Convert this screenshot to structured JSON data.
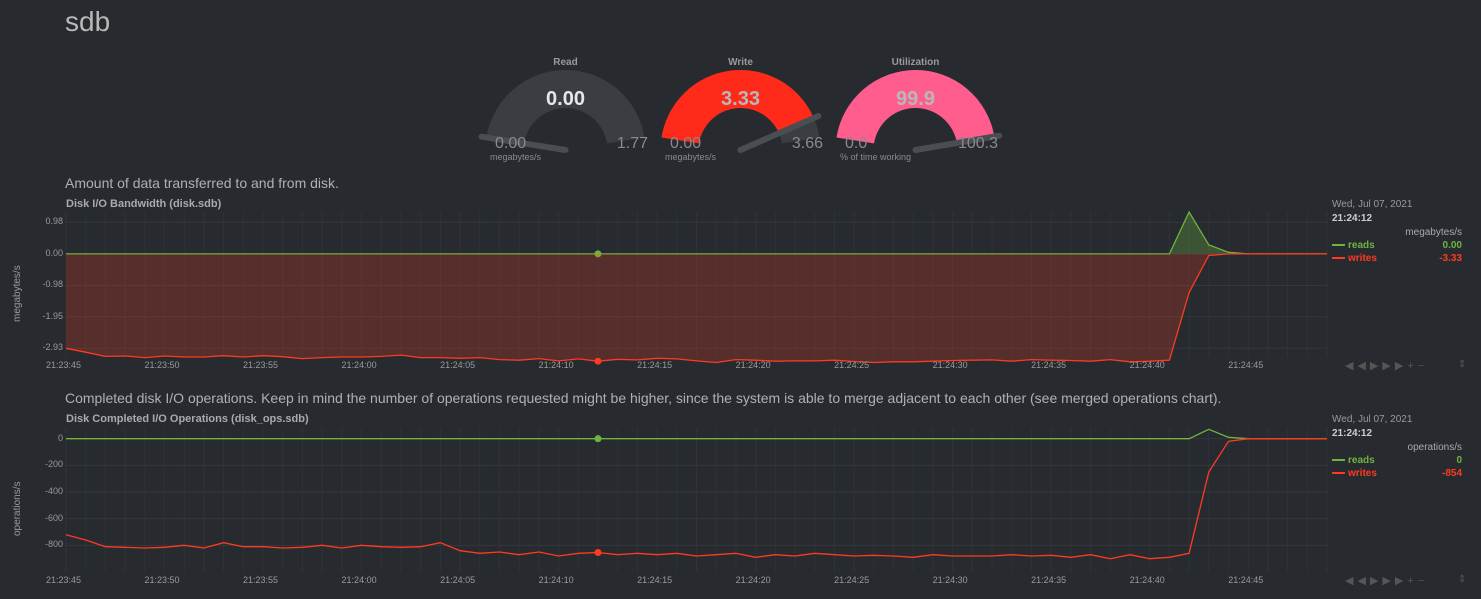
{
  "page": {
    "title": "sdb"
  },
  "gauges": [
    {
      "title": "Read",
      "value": "0.00",
      "min": "0.00",
      "max": "1.77",
      "unit": "megabytes/s",
      "level": 0.0,
      "color": "#3a3d42",
      "value_color": "#e6e6e6"
    },
    {
      "title": "Write",
      "value": "3.33",
      "min": "0.00",
      "max": "3.66",
      "unit": "megabytes/s",
      "level": 0.91,
      "color": "#ff2a1a",
      "value_color": "#b8b8b8"
    },
    {
      "title": "Utilization",
      "value": "99.9",
      "min": "0.0",
      "max": "100.3",
      "unit": "% of time working",
      "level": 0.996,
      "color": "#ff5d8e",
      "value_color": "#b8b8b8"
    }
  ],
  "bandwidth": {
    "description": "Amount of data transferred to and from disk.",
    "title": "Disk I/O Bandwidth (disk.sdb)",
    "ylabel": "megabytes/s",
    "yticks": [
      "0.98",
      "0.00",
      "-0.98",
      "-1.95",
      "-2.93"
    ],
    "xticks": [
      "21:23:45",
      "21:23:50",
      "21:23:55",
      "21:24:00",
      "21:24:05",
      "21:24:10",
      "21:24:15",
      "21:24:20",
      "21:24:25",
      "21:24:30",
      "21:24:35",
      "21:24:40",
      "21:24:45"
    ],
    "legend": {
      "date": "Wed, Jul 07, 2021",
      "time": "21:24:12",
      "unit": "megabytes/s",
      "reads_label": "reads",
      "reads_value": "0.00",
      "writes_label": "writes",
      "writes_value": "-3.33"
    }
  },
  "operations": {
    "description": "Completed disk I/O operations. Keep in mind the number of operations requested might be higher, since the system is able to merge adjacent to each other (see merged operations chart).",
    "title": "Disk Completed I/O Operations (disk_ops.sdb)",
    "ylabel": "operations/s",
    "yticks": [
      "0",
      "-200",
      "-400",
      "-600",
      "-800"
    ],
    "xticks": [
      "21:23:45",
      "21:23:50",
      "21:23:55",
      "21:24:00",
      "21:24:05",
      "21:24:10",
      "21:24:15",
      "21:24:20",
      "21:24:25",
      "21:24:30",
      "21:24:35",
      "21:24:40",
      "21:24:45"
    ],
    "legend": {
      "date": "Wed, Jul 07, 2021",
      "time": "21:24:12",
      "unit": "operations/s",
      "reads_label": "reads",
      "reads_value": "0",
      "writes_label": "writes",
      "writes_value": "-854"
    }
  },
  "chart_data": [
    {
      "type": "area",
      "title": "Disk I/O Bandwidth (disk.sdb)",
      "ylabel": "megabytes/s",
      "ylim": [
        -3.2,
        1.3
      ],
      "x": [
        "21:23:45",
        "21:23:46",
        "21:23:47",
        "21:23:48",
        "21:23:49",
        "21:23:50",
        "21:23:51",
        "21:23:52",
        "21:23:53",
        "21:23:54",
        "21:23:55",
        "21:23:56",
        "21:23:57",
        "21:23:58",
        "21:23:59",
        "21:24:00",
        "21:24:01",
        "21:24:02",
        "21:24:03",
        "21:24:04",
        "21:24:05",
        "21:24:06",
        "21:24:07",
        "21:24:08",
        "21:24:09",
        "21:24:10",
        "21:24:11",
        "21:24:12",
        "21:24:13",
        "21:24:14",
        "21:24:15",
        "21:24:16",
        "21:24:17",
        "21:24:18",
        "21:24:19",
        "21:24:20",
        "21:24:21",
        "21:24:22",
        "21:24:23",
        "21:24:24",
        "21:24:25",
        "21:24:26",
        "21:24:27",
        "21:24:28",
        "21:24:29",
        "21:24:30",
        "21:24:31",
        "21:24:32",
        "21:24:33",
        "21:24:34",
        "21:24:35",
        "21:24:36",
        "21:24:37",
        "21:24:38",
        "21:24:39",
        "21:24:40",
        "21:24:41",
        "21:24:42",
        "21:24:43",
        "21:24:44",
        "21:24:45",
        "21:24:46",
        "21:24:47",
        "21:24:48",
        "21:24:49"
      ],
      "series": [
        {
          "name": "reads",
          "color": "#6fb43f",
          "values": [
            0,
            0,
            0,
            0,
            0,
            0,
            0,
            0,
            0,
            0,
            0,
            0,
            0,
            0,
            0,
            0,
            0,
            0,
            0,
            0,
            0,
            0,
            0,
            0,
            0,
            0,
            0,
            0,
            0,
            0,
            0,
            0,
            0,
            0,
            0,
            0,
            0,
            0,
            0,
            0,
            0,
            0,
            0,
            0,
            0,
            0,
            0,
            0,
            0,
            0,
            0,
            0,
            0,
            0,
            0,
            0,
            0,
            1.3,
            0.28,
            0.05,
            0,
            0,
            0,
            0,
            0
          ]
        },
        {
          "name": "writes",
          "color": "#ff3a22",
          "values": [
            -2.93,
            -3.05,
            -3.18,
            -3.17,
            -3.22,
            -3.17,
            -3.2,
            -3.2,
            -3.16,
            -3.2,
            -3.16,
            -3.19,
            -3.25,
            -3.22,
            -3.2,
            -3.2,
            -3.18,
            -3.14,
            -3.22,
            -3.22,
            -3.24,
            -3.22,
            -3.28,
            -3.3,
            -3.25,
            -3.32,
            -3.26,
            -3.33,
            -3.27,
            -3.29,
            -3.24,
            -3.26,
            -3.32,
            -3.37,
            -3.28,
            -3.3,
            -3.33,
            -3.32,
            -3.32,
            -3.3,
            -3.34,
            -3.37,
            -3.35,
            -3.35,
            -3.33,
            -3.31,
            -3.3,
            -3.29,
            -3.33,
            -3.28,
            -3.3,
            -3.31,
            -3.33,
            -3.28,
            -3.35,
            -3.33,
            -3.3,
            -1.2,
            -0.05,
            0,
            0,
            0,
            0,
            0,
            0
          ]
        }
      ]
    },
    {
      "type": "line",
      "title": "Disk Completed I/O Operations (disk_ops.sdb)",
      "ylabel": "operations/s",
      "ylim": [
        -1000,
        80
      ],
      "x": [
        "21:23:45",
        "21:23:46",
        "21:23:47",
        "21:23:48",
        "21:23:49",
        "21:23:50",
        "21:23:51",
        "21:23:52",
        "21:23:53",
        "21:23:54",
        "21:23:55",
        "21:23:56",
        "21:23:57",
        "21:23:58",
        "21:23:59",
        "21:24:00",
        "21:24:01",
        "21:24:02",
        "21:24:03",
        "21:24:04",
        "21:24:05",
        "21:24:06",
        "21:24:07",
        "21:24:08",
        "21:24:09",
        "21:24:10",
        "21:24:11",
        "21:24:12",
        "21:24:13",
        "21:24:14",
        "21:24:15",
        "21:24:16",
        "21:24:17",
        "21:24:18",
        "21:24:19",
        "21:24:20",
        "21:24:21",
        "21:24:22",
        "21:24:23",
        "21:24:24",
        "21:24:25",
        "21:24:26",
        "21:24:27",
        "21:24:28",
        "21:24:29",
        "21:24:30",
        "21:24:31",
        "21:24:32",
        "21:24:33",
        "21:24:34",
        "21:24:35",
        "21:24:36",
        "21:24:37",
        "21:24:38",
        "21:24:39",
        "21:24:40",
        "21:24:41",
        "21:24:42",
        "21:24:43",
        "21:24:44",
        "21:24:45",
        "21:24:46",
        "21:24:47",
        "21:24:48",
        "21:24:49"
      ],
      "series": [
        {
          "name": "reads",
          "color": "#6fb43f",
          "values": [
            0,
            0,
            0,
            0,
            0,
            0,
            0,
            0,
            0,
            0,
            0,
            0,
            0,
            0,
            0,
            0,
            0,
            0,
            0,
            0,
            0,
            0,
            0,
            0,
            0,
            0,
            0,
            0,
            0,
            0,
            0,
            0,
            0,
            0,
            0,
            0,
            0,
            0,
            0,
            0,
            0,
            0,
            0,
            0,
            0,
            0,
            0,
            0,
            0,
            0,
            0,
            0,
            0,
            0,
            0,
            0,
            0,
            0,
            70,
            10,
            0,
            0,
            0,
            0,
            0
          ]
        },
        {
          "name": "writes",
          "color": "#ff3a22",
          "values": [
            -720,
            -760,
            -810,
            -815,
            -820,
            -815,
            -800,
            -820,
            -780,
            -810,
            -810,
            -820,
            -815,
            -800,
            -820,
            -800,
            -810,
            -815,
            -810,
            -780,
            -840,
            -860,
            -850,
            -870,
            -850,
            -880,
            -860,
            -854,
            -870,
            -860,
            -870,
            -860,
            -880,
            -870,
            -860,
            -890,
            -870,
            -880,
            -860,
            -870,
            -880,
            -875,
            -880,
            -890,
            -870,
            -880,
            -880,
            -880,
            -870,
            -880,
            -875,
            -890,
            -870,
            -900,
            -870,
            -900,
            -890,
            -860,
            -250,
            -20,
            0,
            0,
            0,
            0,
            0
          ]
        }
      ]
    }
  ]
}
